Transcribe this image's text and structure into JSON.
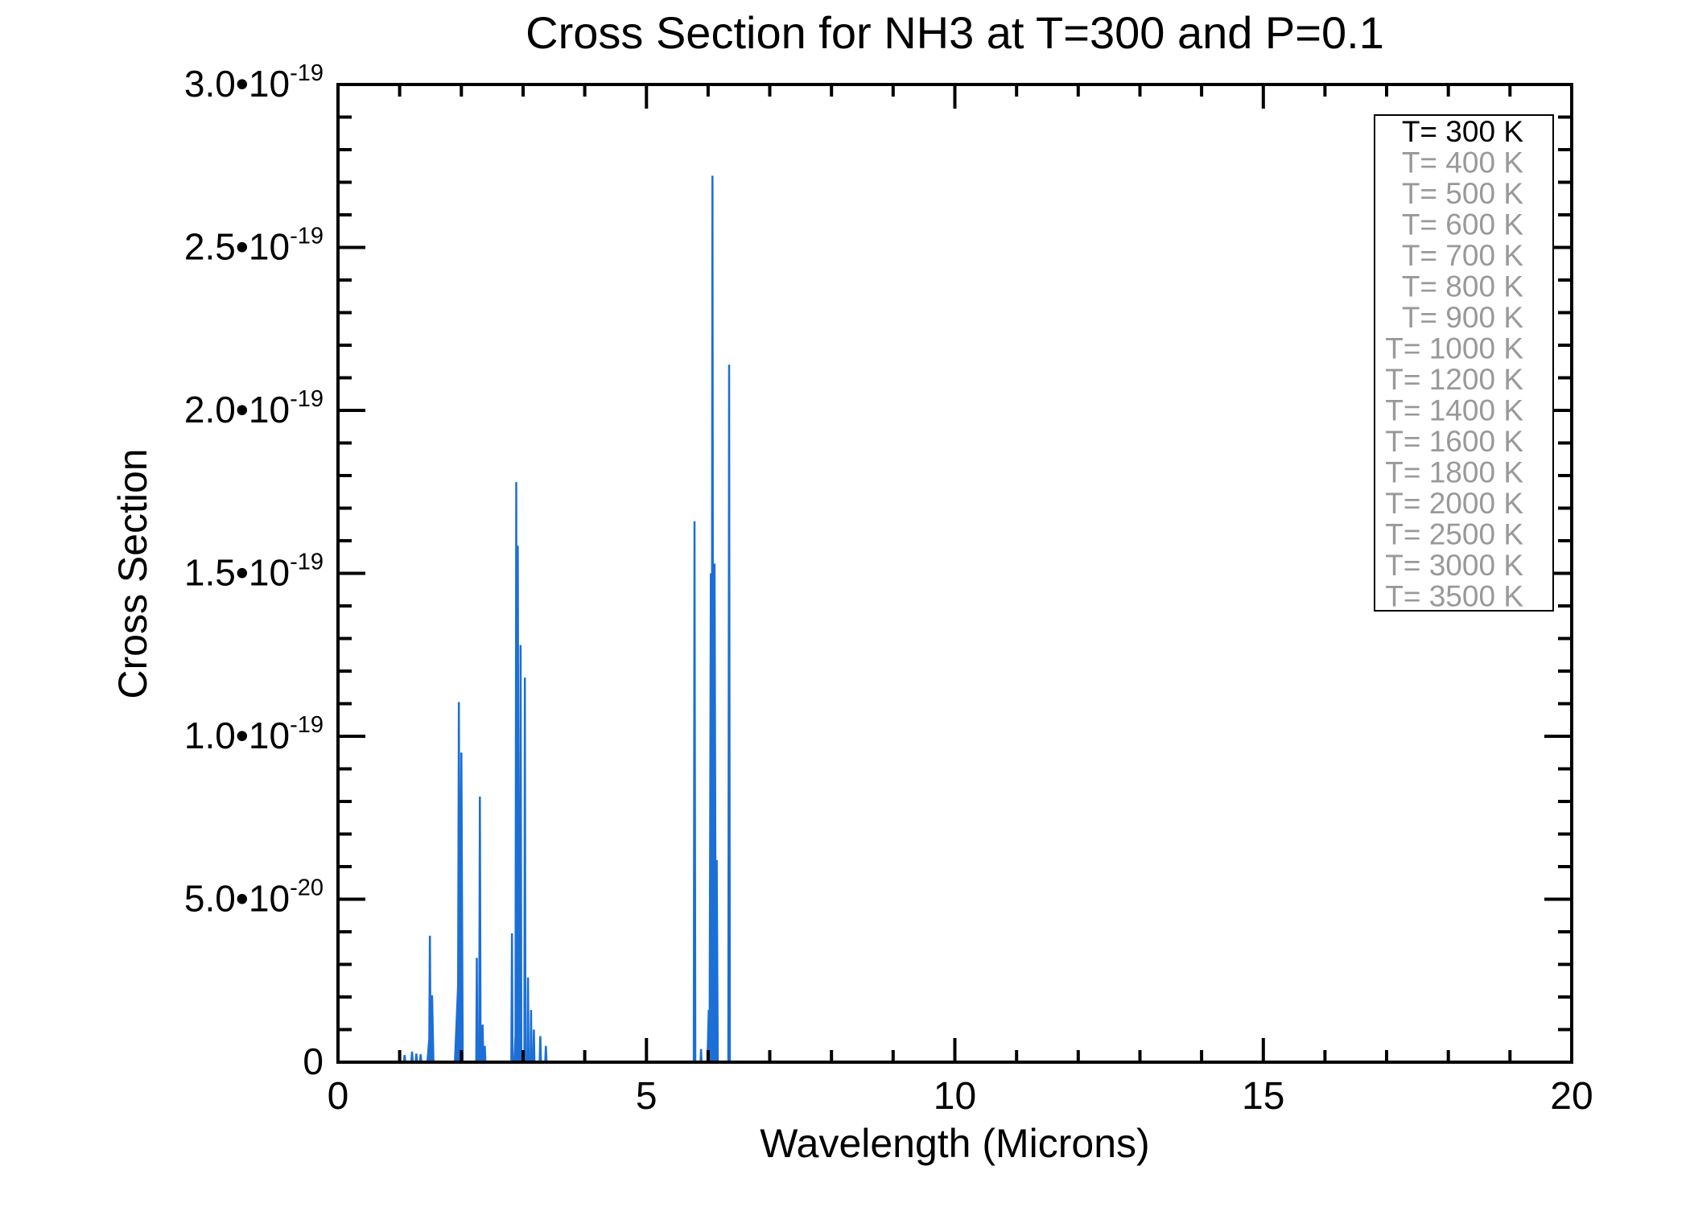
{
  "page": {
    "background": "#ffffff"
  },
  "chart_data": {
    "type": "line",
    "title": "Cross Section for NH3 at T=300 and P=0.1",
    "x_axis": {
      "label": "Wavelength (Microns)",
      "range": [
        0,
        20
      ],
      "major_ticks": [
        0,
        5,
        10,
        15,
        20
      ],
      "major_tick_labels": [
        "0",
        "5",
        "10",
        "15",
        "20"
      ],
      "minor_tick_step": 1
    },
    "y_axis": {
      "label": "Cross Section",
      "range": [
        0,
        3e-19
      ],
      "major_ticks": [
        {
          "value": 0,
          "mantissa": "0",
          "exponent": ""
        },
        {
          "value": 5e-20,
          "mantissa": "5.0",
          "exponent": "-20"
        },
        {
          "value": 1e-19,
          "mantissa": "1.0",
          "exponent": "-19"
        },
        {
          "value": 1.5e-19,
          "mantissa": "1.5",
          "exponent": "-19"
        },
        {
          "value": 2e-19,
          "mantissa": "2.0",
          "exponent": "-19"
        },
        {
          "value": 2.5e-19,
          "mantissa": "2.5",
          "exponent": "-19"
        },
        {
          "value": 3e-19,
          "mantissa": "3.0",
          "exponent": "-19"
        }
      ],
      "times_symbol": "•10",
      "minor_tick_step": 1e-20
    },
    "grid": false,
    "legend": {
      "position": "top-right",
      "active_color": "#000000",
      "inactive_color": "#999999",
      "entries": [
        {
          "label": "T= 300 K",
          "color": "#000000"
        },
        {
          "label": "T= 400 K",
          "color": "#999999"
        },
        {
          "label": "T= 500 K",
          "color": "#999999"
        },
        {
          "label": "T= 600 K",
          "color": "#999999"
        },
        {
          "label": "T= 700 K",
          "color": "#999999"
        },
        {
          "label": "T= 800 K",
          "color": "#999999"
        },
        {
          "label": "T= 900 K",
          "color": "#999999"
        },
        {
          "label": "T= 1000 K",
          "color": "#999999"
        },
        {
          "label": "T= 1200 K",
          "color": "#999999"
        },
        {
          "label": "T= 1400 K",
          "color": "#999999"
        },
        {
          "label": "T= 1600 K",
          "color": "#999999"
        },
        {
          "label": "T= 1800 K",
          "color": "#999999"
        },
        {
          "label": "T= 2000 K",
          "color": "#999999"
        },
        {
          "label": "T= 2500 K",
          "color": "#999999"
        },
        {
          "label": "T= 3000 K",
          "color": "#999999"
        },
        {
          "label": "T= 3500 K",
          "color": "#999999"
        }
      ]
    },
    "series": [
      {
        "name": "T= 300 K",
        "color": "#1C6FD6",
        "baseline_start_micron": 0.52,
        "baseline_end_micron": 20,
        "peaks_format": [
          "wavelength_micron",
          "cross_section",
          "display_halfwidth_micron"
        ],
        "peaks": [
          [
            1.08,
            2.2e-21,
            0.012
          ],
          [
            1.2,
            3.2e-21,
            0.012
          ],
          [
            1.27,
            2.6e-21,
            0.012
          ],
          [
            1.34,
            2.4e-21,
            0.012
          ],
          [
            1.49,
            3.88e-20,
            0.012
          ],
          [
            1.5,
            1.2e-20,
            0.05
          ],
          [
            1.525,
            2.05e-20,
            0.022
          ],
          [
            1.95,
            2.5e-20,
            0.055
          ],
          [
            1.96,
            1.105e-19,
            0.016
          ],
          [
            2.0,
            9.5e-20,
            0.022
          ],
          [
            2.25,
            3.2e-20,
            0.008
          ],
          [
            2.3,
            8.15e-20,
            0.012
          ],
          [
            2.345,
            1.15e-20,
            0.01
          ],
          [
            2.38,
            5e-21,
            0.01
          ],
          [
            2.82,
            3.95e-20,
            0.01
          ],
          [
            2.89,
            1.78e-19,
            0.013
          ],
          [
            2.915,
            1.585e-19,
            0.016
          ],
          [
            2.92,
            2.8e-20,
            0.06
          ],
          [
            2.96,
            1.28e-19,
            0.012
          ],
          [
            3.03,
            1.18e-19,
            0.009
          ],
          [
            3.08,
            2.6e-20,
            0.009
          ],
          [
            3.13,
            1.6e-20,
            0.009
          ],
          [
            3.175,
            1e-20,
            0.009
          ],
          [
            3.28,
            8e-21,
            0.01
          ],
          [
            3.37,
            5e-21,
            0.01
          ],
          [
            5.78,
            1.66e-19,
            0.012
          ],
          [
            5.885,
            4e-21,
            0.008
          ],
          [
            6.01,
            1.6e-20,
            0.02
          ],
          [
            6.045,
            1.5e-19,
            0.022
          ],
          [
            6.07,
            2.72e-19,
            0.014
          ],
          [
            6.08,
            8e-20,
            0.045
          ],
          [
            6.105,
            1.53e-19,
            0.022
          ],
          [
            6.14,
            6.2e-20,
            0.016
          ],
          [
            6.34,
            2.14e-19,
            0.012
          ]
        ]
      }
    ]
  }
}
